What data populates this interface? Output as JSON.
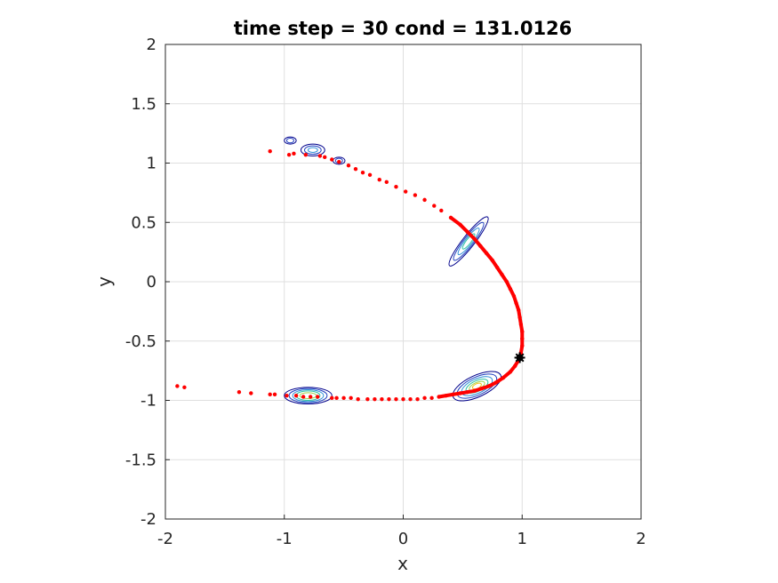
{
  "chart_data": {
    "type": "scatter",
    "title": "time step = 30 cond = 131.0126",
    "xlabel": "x",
    "ylabel": "y",
    "xlim": [
      -2,
      2
    ],
    "ylim": [
      -2,
      2
    ],
    "x_ticks": [
      "-2",
      "-1",
      "0",
      "1",
      "2"
    ],
    "y_ticks": [
      "2",
      "1.5",
      "1",
      "0.5",
      "0",
      "-0.5",
      "-1",
      "-1.5",
      "-2"
    ],
    "grid": true,
    "series": [
      {
        "marker": "dot",
        "color": "#ff0000",
        "points": [
          [
            -1.9,
            -0.88
          ],
          [
            -1.84,
            -0.89
          ],
          [
            -1.38,
            -0.93
          ],
          [
            -1.28,
            -0.94
          ],
          [
            -1.12,
            -0.95
          ],
          [
            -1.08,
            -0.95
          ],
          [
            -0.98,
            -0.96
          ],
          [
            -0.9,
            -0.96
          ],
          [
            -0.84,
            -0.97
          ],
          [
            -0.78,
            -0.97
          ],
          [
            -0.72,
            -0.97
          ],
          [
            -0.6,
            -0.98
          ],
          [
            -0.56,
            -0.98
          ],
          [
            -0.5,
            -0.98
          ],
          [
            -0.44,
            -0.98
          ],
          [
            -0.38,
            -0.99
          ],
          [
            -0.3,
            -0.99
          ],
          [
            -0.24,
            -0.99
          ],
          [
            -0.18,
            -0.99
          ],
          [
            -0.12,
            -0.99
          ],
          [
            -0.06,
            -0.99
          ],
          [
            0.0,
            -0.99
          ],
          [
            0.06,
            -0.99
          ],
          [
            0.12,
            -0.99
          ],
          [
            0.18,
            -0.98
          ],
          [
            0.24,
            -0.98
          ],
          [
            0.3,
            -0.97
          ],
          [
            0.36,
            -0.96
          ],
          [
            0.42,
            -0.95
          ],
          [
            0.48,
            -0.94
          ],
          [
            0.54,
            -0.93
          ],
          [
            0.6,
            -0.92
          ],
          [
            0.66,
            -0.9
          ],
          [
            0.72,
            -0.88
          ],
          [
            0.78,
            -0.85
          ],
          [
            0.84,
            -0.81
          ],
          [
            0.9,
            -0.76
          ],
          [
            0.94,
            -0.71
          ],
          [
            0.97,
            -0.66
          ],
          [
            0.99,
            -0.6
          ],
          [
            1.0,
            -0.54
          ],
          [
            1.0,
            -0.48
          ],
          [
            1.0,
            -0.42
          ],
          [
            0.99,
            -0.36
          ],
          [
            0.98,
            -0.3
          ],
          [
            0.97,
            -0.24
          ],
          [
            0.95,
            -0.18
          ],
          [
            0.93,
            -0.12
          ],
          [
            0.9,
            -0.06
          ],
          [
            0.87,
            0.0
          ],
          [
            0.83,
            0.06
          ],
          [
            0.79,
            0.12
          ],
          [
            0.75,
            0.18
          ],
          [
            0.7,
            0.24
          ],
          [
            0.65,
            0.3
          ],
          [
            0.6,
            0.36
          ],
          [
            0.54,
            0.42
          ],
          [
            0.48,
            0.48
          ],
          [
            0.4,
            0.54
          ],
          [
            0.32,
            0.6
          ],
          [
            0.26,
            0.64
          ],
          [
            0.18,
            0.69
          ],
          [
            0.1,
            0.73
          ],
          [
            0.02,
            0.76
          ],
          [
            -0.06,
            0.8
          ],
          [
            -0.14,
            0.84
          ],
          [
            -0.2,
            0.86
          ],
          [
            -0.28,
            0.9
          ],
          [
            -0.34,
            0.92
          ],
          [
            -0.4,
            0.95
          ],
          [
            -0.46,
            0.98
          ],
          [
            -0.54,
            1.01
          ],
          [
            -0.6,
            1.03
          ],
          [
            -0.66,
            1.05
          ],
          [
            -0.7,
            1.06
          ],
          [
            -0.82,
            1.07
          ],
          [
            -0.96,
            1.07
          ],
          [
            -0.92,
            1.08
          ],
          [
            -1.12,
            1.1
          ]
        ]
      },
      {
        "marker": "star",
        "color": "#000000",
        "points": [
          [
            0.98,
            -0.64
          ]
        ]
      }
    ],
    "contours": [
      {
        "center": [
          -0.8,
          -0.96
        ],
        "rx": [
          0.2,
          0.16,
          0.13,
          0.1,
          0.07
        ],
        "ry": [
          0.07,
          0.06,
          0.05,
          0.04,
          0.025
        ],
        "rotate": 0
      },
      {
        "center": [
          0.62,
          -0.88
        ],
        "rx": [
          0.22,
          0.18,
          0.14,
          0.1,
          0.07,
          0.04
        ],
        "ry": [
          0.09,
          0.075,
          0.06,
          0.045,
          0.03,
          0.02
        ],
        "rotate": -25
      },
      {
        "center": [
          0.55,
          0.34
        ],
        "rx": [
          0.26,
          0.2,
          0.14,
          0.08
        ],
        "ry": [
          0.05,
          0.04,
          0.03,
          0.02
        ],
        "rotate": -52
      },
      {
        "center": [
          -0.76,
          1.11
        ],
        "rx": [
          0.1,
          0.07,
          0.04
        ],
        "ry": [
          0.05,
          0.035,
          0.02
        ],
        "rotate": 0
      },
      {
        "center": [
          -0.95,
          1.19
        ],
        "rx": [
          0.05,
          0.03
        ],
        "ry": [
          0.03,
          0.02
        ],
        "rotate": 0
      },
      {
        "center": [
          -0.54,
          1.02
        ],
        "rx": [
          0.05,
          0.03
        ],
        "ry": [
          0.03,
          0.02
        ],
        "rotate": 0
      }
    ],
    "contour_colors": [
      "#00008b",
      "#1f3fbf",
      "#2f8fd7",
      "#2cc3a0",
      "#9fd34a",
      "#f4c01e"
    ]
  }
}
